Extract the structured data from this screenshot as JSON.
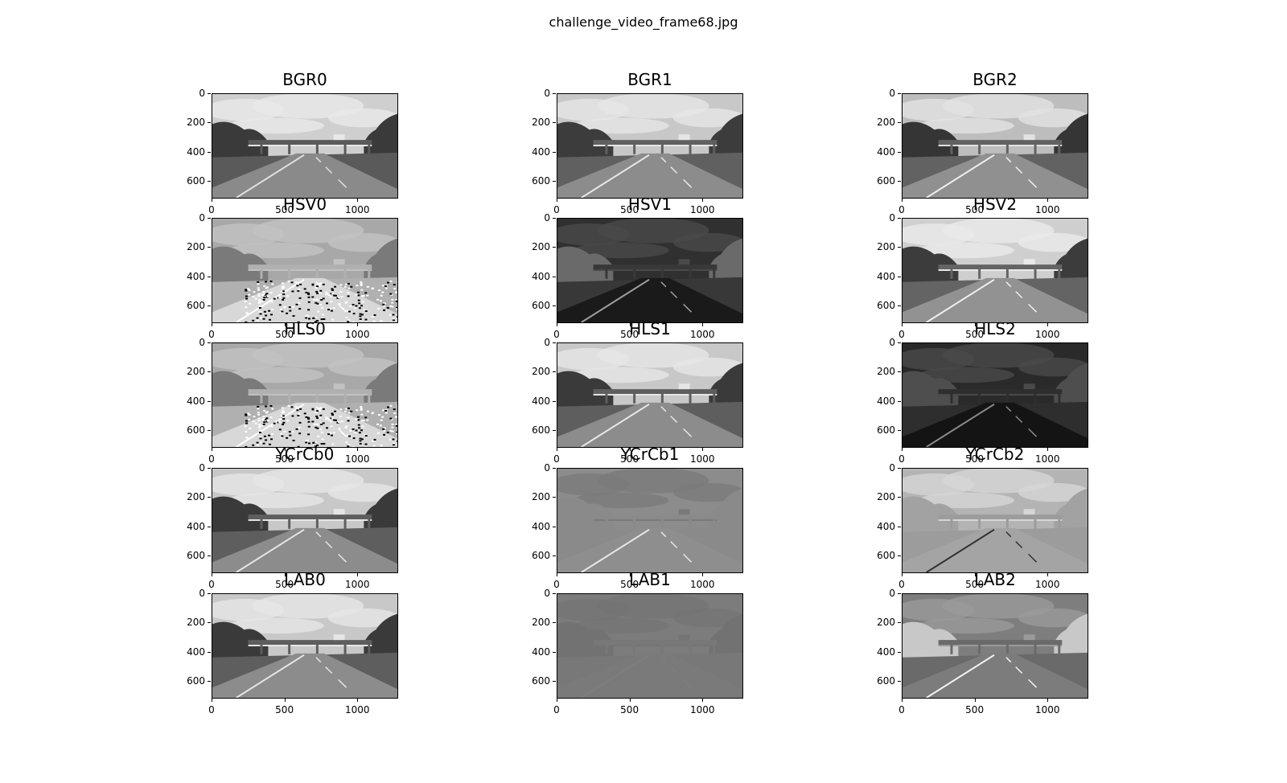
{
  "figure": {
    "title": "challenge_video_frame68.jpg"
  },
  "axes": {
    "x_ticks": [
      0,
      500,
      1000
    ],
    "y_ticks": [
      0,
      200,
      400,
      600
    ],
    "x_range": [
      0,
      1280
    ],
    "y_range": [
      720,
      0
    ]
  },
  "panels": [
    {
      "title": "BGR0",
      "sky": "#cfcfcf",
      "cloud": "#e8e8e8",
      "trees": "#3a3a3a",
      "road": "#8a8a8a",
      "shoulder": "#5a5a5a",
      "lane": "#e0e0e0",
      "noise": false
    },
    {
      "title": "BGR1",
      "sky": "#c8c8c8",
      "cloud": "#e6e6e6",
      "trees": "#3c3c3c",
      "road": "#8c8c8c",
      "shoulder": "#606060",
      "lane": "#e8e8e8",
      "noise": false
    },
    {
      "title": "BGR2",
      "sky": "#bdbdbd",
      "cloud": "#e2e2e2",
      "trees": "#353535",
      "road": "#909090",
      "shoulder": "#626262",
      "lane": "#f0f0f0",
      "noise": false
    },
    {
      "title": "HSV0",
      "sky": "#a8a8a8",
      "cloud": "#c2c2c2",
      "trees": "#7a7a7a",
      "road": "#d8d8d8",
      "shoulder": "#b0b0b0",
      "lane": "#ffffff",
      "noise": true
    },
    {
      "title": "HSV1",
      "sky": "#303030",
      "cloud": "#4a4a4a",
      "trees": "#6a6a6a",
      "road": "#1a1a1a",
      "shoulder": "#383838",
      "lane": "#a0a0a0",
      "noise": false
    },
    {
      "title": "HSV2",
      "sky": "#cfcfcf",
      "cloud": "#eaeaea",
      "trees": "#3c3c3c",
      "road": "#929292",
      "shoulder": "#646464",
      "lane": "#f0f0f0",
      "noise": false
    },
    {
      "title": "HLS0",
      "sky": "#a8a8a8",
      "cloud": "#c2c2c2",
      "trees": "#7a7a7a",
      "road": "#d8d8d8",
      "shoulder": "#b0b0b0",
      "lane": "#ffffff",
      "noise": true
    },
    {
      "title": "HLS1",
      "sky": "#c8c8c8",
      "cloud": "#e6e6e6",
      "trees": "#3a3a3a",
      "road": "#8c8c8c",
      "shoulder": "#5e5e5e",
      "lane": "#e8e8e8",
      "noise": false
    },
    {
      "title": "HLS2",
      "sky": "#2a2a2a",
      "cloud": "#4a4a4a",
      "trees": "#4e4e4e",
      "road": "#141414",
      "shoulder": "#2e2e2e",
      "lane": "#8a8a8a",
      "noise": false
    },
    {
      "title": "YCrCb0",
      "sky": "#c8c8c8",
      "cloud": "#e6e6e6",
      "trees": "#3a3a3a",
      "road": "#8c8c8c",
      "shoulder": "#5e5e5e",
      "lane": "#e6e6e6",
      "noise": false
    },
    {
      "title": "YCrCb1",
      "sky": "#8c8c8c",
      "cloud": "#7a7a7a",
      "trees": "#8a8a8a",
      "road": "#8e8e8e",
      "shoulder": "#8a8a8a",
      "lane": "#e8e8e8",
      "noise": false
    },
    {
      "title": "YCrCb2",
      "sky": "#b4b4b4",
      "cloud": "#d6d6d6",
      "trees": "#a2a2a2",
      "road": "#a4a4a4",
      "shoulder": "#9c9c9c",
      "lane": "#303030",
      "noise": false
    },
    {
      "title": "LAB0",
      "sky": "#c8c8c8",
      "cloud": "#e6e6e6",
      "trees": "#3a3a3a",
      "road": "#8c8c8c",
      "shoulder": "#5e5e5e",
      "lane": "#e6e6e6",
      "noise": false
    },
    {
      "title": "LAB1",
      "sky": "#7c7c7c",
      "cloud": "#747474",
      "trees": "#727272",
      "road": "#7a7a7a",
      "shoulder": "#787878",
      "lane": "#7e7e7e",
      "noise": false
    },
    {
      "title": "LAB2",
      "sky": "#7e7e7e",
      "cloud": "#9a9a9a",
      "trees": "#c8c8c8",
      "road": "#7c7c7c",
      "shoulder": "#6a6a6a",
      "lane": "#f4f4f4",
      "noise": false
    }
  ]
}
